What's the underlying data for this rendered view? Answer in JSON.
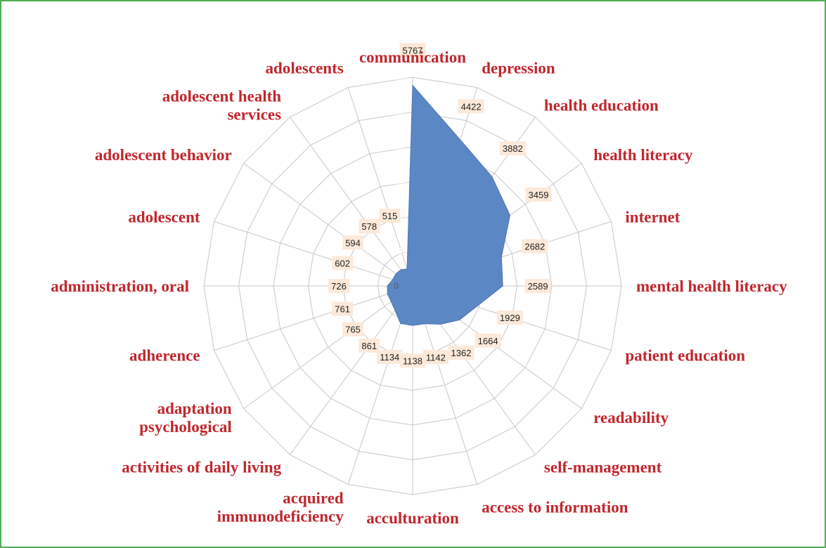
{
  "chart_data": {
    "type": "radar",
    "categories": [
      "communication",
      "depression",
      "health education",
      "health literacy",
      "internet",
      "mental health literacy",
      "patient education",
      "readability",
      "self-management",
      "access to information",
      "acculturation",
      "acquired\nimmunodeficiency",
      "activities of daily living",
      "adaptation\npsychological",
      "adherence",
      "administration, oral",
      "adolescent",
      "adolescent behavior",
      "adolescent health\nservices",
      "adolescents"
    ],
    "values": [
      5767,
      4422,
      3882,
      3459,
      2682,
      2589,
      1929,
      1664,
      1362,
      1142,
      1138,
      1134,
      861,
      765,
      761,
      726,
      602,
      594,
      578,
      515
    ],
    "color": "#5b87c5",
    "rlim": [
      0,
      6000
    ],
    "rticks": [
      0,
      1000,
      2000,
      3000,
      4000,
      5000,
      6000
    ],
    "grid": true
  }
}
